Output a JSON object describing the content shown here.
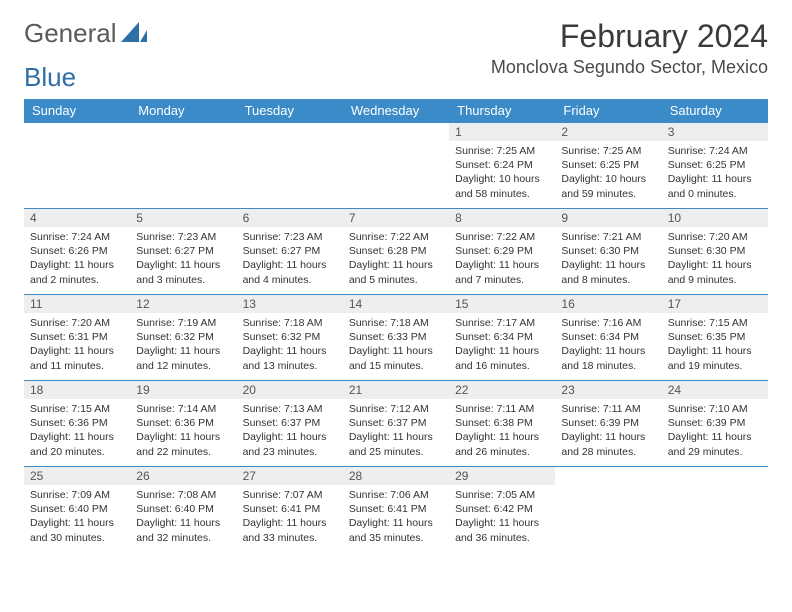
{
  "logo": {
    "text1": "General",
    "text2": "Blue",
    "color1": "#5a5a5a",
    "color2": "#2f6fa8"
  },
  "title": "February 2024",
  "location": "Monclova Segundo Sector, Mexico",
  "header_bg": "#3b8bc9",
  "daynum_bg": "#eeeeee",
  "border_color": "#3b8bc9",
  "days_of_week": [
    "Sunday",
    "Monday",
    "Tuesday",
    "Wednesday",
    "Thursday",
    "Friday",
    "Saturday"
  ],
  "weeks": [
    [
      null,
      null,
      null,
      null,
      {
        "n": "1",
        "sr": "Sunrise: 7:25 AM",
        "ss": "Sunset: 6:24 PM",
        "dl": "Daylight: 10 hours and 58 minutes."
      },
      {
        "n": "2",
        "sr": "Sunrise: 7:25 AM",
        "ss": "Sunset: 6:25 PM",
        "dl": "Daylight: 10 hours and 59 minutes."
      },
      {
        "n": "3",
        "sr": "Sunrise: 7:24 AM",
        "ss": "Sunset: 6:25 PM",
        "dl": "Daylight: 11 hours and 0 minutes."
      }
    ],
    [
      {
        "n": "4",
        "sr": "Sunrise: 7:24 AM",
        "ss": "Sunset: 6:26 PM",
        "dl": "Daylight: 11 hours and 2 minutes."
      },
      {
        "n": "5",
        "sr": "Sunrise: 7:23 AM",
        "ss": "Sunset: 6:27 PM",
        "dl": "Daylight: 11 hours and 3 minutes."
      },
      {
        "n": "6",
        "sr": "Sunrise: 7:23 AM",
        "ss": "Sunset: 6:27 PM",
        "dl": "Daylight: 11 hours and 4 minutes."
      },
      {
        "n": "7",
        "sr": "Sunrise: 7:22 AM",
        "ss": "Sunset: 6:28 PM",
        "dl": "Daylight: 11 hours and 5 minutes."
      },
      {
        "n": "8",
        "sr": "Sunrise: 7:22 AM",
        "ss": "Sunset: 6:29 PM",
        "dl": "Daylight: 11 hours and 7 minutes."
      },
      {
        "n": "9",
        "sr": "Sunrise: 7:21 AM",
        "ss": "Sunset: 6:30 PM",
        "dl": "Daylight: 11 hours and 8 minutes."
      },
      {
        "n": "10",
        "sr": "Sunrise: 7:20 AM",
        "ss": "Sunset: 6:30 PM",
        "dl": "Daylight: 11 hours and 9 minutes."
      }
    ],
    [
      {
        "n": "11",
        "sr": "Sunrise: 7:20 AM",
        "ss": "Sunset: 6:31 PM",
        "dl": "Daylight: 11 hours and 11 minutes."
      },
      {
        "n": "12",
        "sr": "Sunrise: 7:19 AM",
        "ss": "Sunset: 6:32 PM",
        "dl": "Daylight: 11 hours and 12 minutes."
      },
      {
        "n": "13",
        "sr": "Sunrise: 7:18 AM",
        "ss": "Sunset: 6:32 PM",
        "dl": "Daylight: 11 hours and 13 minutes."
      },
      {
        "n": "14",
        "sr": "Sunrise: 7:18 AM",
        "ss": "Sunset: 6:33 PM",
        "dl": "Daylight: 11 hours and 15 minutes."
      },
      {
        "n": "15",
        "sr": "Sunrise: 7:17 AM",
        "ss": "Sunset: 6:34 PM",
        "dl": "Daylight: 11 hours and 16 minutes."
      },
      {
        "n": "16",
        "sr": "Sunrise: 7:16 AM",
        "ss": "Sunset: 6:34 PM",
        "dl": "Daylight: 11 hours and 18 minutes."
      },
      {
        "n": "17",
        "sr": "Sunrise: 7:15 AM",
        "ss": "Sunset: 6:35 PM",
        "dl": "Daylight: 11 hours and 19 minutes."
      }
    ],
    [
      {
        "n": "18",
        "sr": "Sunrise: 7:15 AM",
        "ss": "Sunset: 6:36 PM",
        "dl": "Daylight: 11 hours and 20 minutes."
      },
      {
        "n": "19",
        "sr": "Sunrise: 7:14 AM",
        "ss": "Sunset: 6:36 PM",
        "dl": "Daylight: 11 hours and 22 minutes."
      },
      {
        "n": "20",
        "sr": "Sunrise: 7:13 AM",
        "ss": "Sunset: 6:37 PM",
        "dl": "Daylight: 11 hours and 23 minutes."
      },
      {
        "n": "21",
        "sr": "Sunrise: 7:12 AM",
        "ss": "Sunset: 6:37 PM",
        "dl": "Daylight: 11 hours and 25 minutes."
      },
      {
        "n": "22",
        "sr": "Sunrise: 7:11 AM",
        "ss": "Sunset: 6:38 PM",
        "dl": "Daylight: 11 hours and 26 minutes."
      },
      {
        "n": "23",
        "sr": "Sunrise: 7:11 AM",
        "ss": "Sunset: 6:39 PM",
        "dl": "Daylight: 11 hours and 28 minutes."
      },
      {
        "n": "24",
        "sr": "Sunrise: 7:10 AM",
        "ss": "Sunset: 6:39 PM",
        "dl": "Daylight: 11 hours and 29 minutes."
      }
    ],
    [
      {
        "n": "25",
        "sr": "Sunrise: 7:09 AM",
        "ss": "Sunset: 6:40 PM",
        "dl": "Daylight: 11 hours and 30 minutes."
      },
      {
        "n": "26",
        "sr": "Sunrise: 7:08 AM",
        "ss": "Sunset: 6:40 PM",
        "dl": "Daylight: 11 hours and 32 minutes."
      },
      {
        "n": "27",
        "sr": "Sunrise: 7:07 AM",
        "ss": "Sunset: 6:41 PM",
        "dl": "Daylight: 11 hours and 33 minutes."
      },
      {
        "n": "28",
        "sr": "Sunrise: 7:06 AM",
        "ss": "Sunset: 6:41 PM",
        "dl": "Daylight: 11 hours and 35 minutes."
      },
      {
        "n": "29",
        "sr": "Sunrise: 7:05 AM",
        "ss": "Sunset: 6:42 PM",
        "dl": "Daylight: 11 hours and 36 minutes."
      },
      null,
      null
    ]
  ]
}
